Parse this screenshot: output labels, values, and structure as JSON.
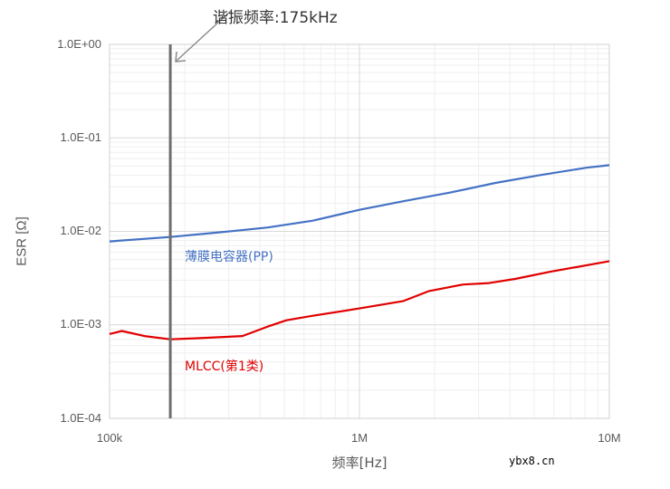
{
  "chart_data": {
    "type": "line",
    "title": "",
    "xlabel": "频率[Hz]",
    "ylabel": "ESR [Ω]",
    "xscale": "log",
    "yscale": "log",
    "xlim": [
      100000,
      10000000
    ],
    "ylim": [
      0.0001,
      1
    ],
    "x_ticks": [
      "100k",
      "1M",
      "10M"
    ],
    "y_ticks": [
      "1.0E+00",
      "1.0E-01",
      "1.0E-02",
      "1.0E-03",
      "1.0E-04"
    ],
    "grid": true,
    "legend": "inline labels",
    "annotations": [
      {
        "text": "谐振频率:175kHz",
        "x": 175000,
        "type": "vertical-line-with-arrow"
      }
    ],
    "series": [
      {
        "name": "薄膜电容器(PP)",
        "color": "#4472c4",
        "x": [
          100000,
          175000,
          280000,
          430000,
          650000,
          1000000,
          1500000,
          2300000,
          3500000,
          5300000,
          8100000,
          10000000
        ],
        "values": [
          0.0078,
          0.0087,
          0.0098,
          0.011,
          0.013,
          0.017,
          0.021,
          0.026,
          0.033,
          0.04,
          0.048,
          0.051
        ]
      },
      {
        "name": "MLCC(第1类)",
        "color": "#e00000",
        "x": [
          100000,
          112000,
          138000,
          175000,
          225000,
          340000,
          430000,
          510000,
          650000,
          1000000,
          1500000,
          1900000,
          2600000,
          3300000,
          4200000,
          5800000,
          10000000
        ],
        "values": [
          0.0008,
          0.00086,
          0.00076,
          0.0007,
          0.00072,
          0.00076,
          0.00096,
          0.00112,
          0.00125,
          0.0015,
          0.0018,
          0.0023,
          0.0027,
          0.0028,
          0.0031,
          0.0037,
          0.0048
        ]
      }
    ]
  },
  "labels": {
    "annotation": "谐振频率:175kHz",
    "series_pp": "薄膜电容器(PP)",
    "series_mlcc": "MLCC(第1类)",
    "xlabel": "频率[Hz]",
    "ylabel": "ESR [Ω]",
    "y_ticks": [
      "1.0E+00",
      "1.0E-01",
      "1.0E-02",
      "1.0E-03",
      "1.0E-04"
    ],
    "x_ticks": [
      "100k",
      "1M",
      "10M"
    ],
    "watermark": "ybx8.cn"
  },
  "colors": {
    "pp": "#4472c4",
    "mlcc": "#e00000",
    "resonance_line": "#6e6e6e",
    "grid_major": "#d9d9d9",
    "grid_minor": "#efefef"
  }
}
